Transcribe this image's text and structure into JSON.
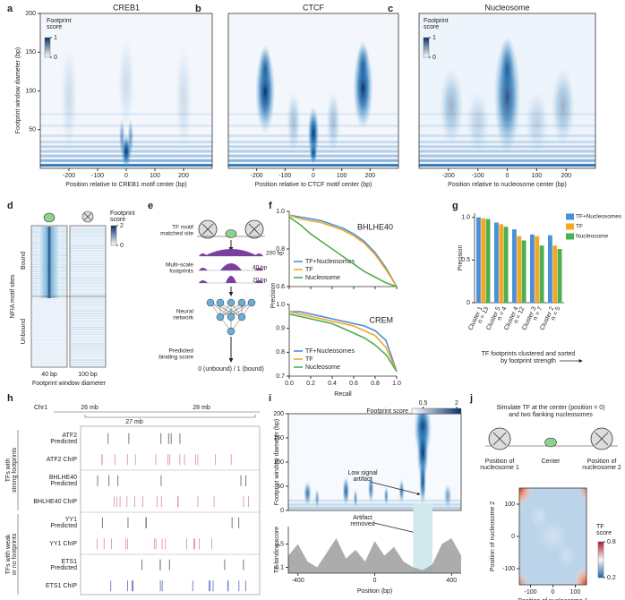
{
  "panel_labels": [
    "a",
    "b",
    "c",
    "d",
    "e",
    "f",
    "g",
    "h",
    "i",
    "j"
  ],
  "chart_data": [
    {
      "type": "heatmap",
      "title": "CREB1",
      "xlabel": "Position relative to CREB1 motif center (bp)",
      "ylabel": "Footprint window diameter (bp)",
      "xlim": [
        -300,
        300
      ],
      "xticks": [
        -200,
        -100,
        0,
        100,
        200
      ],
      "ylim": [
        0,
        200
      ],
      "yticks": [
        50,
        100,
        150,
        200
      ],
      "colorbar_label": [
        "Footprint",
        "score"
      ],
      "clim": [
        0,
        1
      ],
      "cticks": [
        0,
        1
      ]
    },
    {
      "type": "heatmap",
      "title": "CTCF",
      "xlabel": "Position relative to CTCF motif center (bp)",
      "xlim": [
        -300,
        300
      ],
      "xticks": [
        -200,
        -100,
        0,
        100,
        200
      ],
      "ylim": [
        0,
        200
      ]
    },
    {
      "type": "heatmap",
      "title": "Nucleosome",
      "xlabel": "Position relative to nucleosome center (bp)",
      "xlim": [
        -300,
        300
      ],
      "xticks": [
        -200,
        -100,
        0,
        100,
        200
      ],
      "ylim": [
        0,
        200
      ],
      "colorbar_label": [
        "Footprint",
        "score"
      ],
      "clim": [
        0,
        1
      ],
      "cticks": [
        0,
        1
      ]
    },
    {
      "type": "line",
      "title": "BHLHE40",
      "ylabel": "Precision",
      "x": [
        0,
        0.1,
        0.2,
        0.3,
        0.4,
        0.5,
        0.6,
        0.7,
        0.8,
        0.9,
        1
      ],
      "xlim": [
        0,
        1
      ],
      "ylim": [
        0.6,
        1.0
      ],
      "yticks": [
        0.6,
        0.8,
        {
          "value": 1,
          "label": "1.0"
        }
      ],
      "legend": "lower left",
      "series": [
        {
          "name": "TF+Nucleosomes",
          "color": "#4a90d9",
          "values": [
            0.98,
            0.97,
            0.96,
            0.95,
            0.93,
            0.91,
            0.88,
            0.84,
            0.78,
            0.7,
            0.6
          ]
        },
        {
          "name": "TF",
          "color": "#f5a623",
          "values": [
            0.98,
            0.96,
            0.95,
            0.94,
            0.92,
            0.9,
            0.87,
            0.83,
            0.77,
            0.69,
            0.6
          ]
        },
        {
          "name": "Nucleosome",
          "color": "#4caf50",
          "values": [
            0.97,
            0.93,
            0.88,
            0.84,
            0.8,
            0.76,
            0.72,
            0.68,
            0.65,
            0.62,
            0.6
          ]
        }
      ]
    },
    {
      "type": "line",
      "title": "CREM",
      "xlabel": "Recall",
      "x": [
        0,
        0.1,
        0.2,
        0.3,
        0.4,
        0.5,
        0.6,
        0.7,
        0.8,
        0.9,
        1
      ],
      "xlim": [
        0,
        1
      ],
      "xticks": [
        {
          "value": 0,
          "label": "0.0"
        },
        0.2,
        0.4,
        0.6,
        0.8,
        {
          "value": 1,
          "label": "1.0"
        }
      ],
      "ylim": [
        0.7,
        1.0
      ],
      "yticks": [
        0.7,
        0.8,
        0.9,
        {
          "value": 1,
          "label": "1.0"
        }
      ],
      "legend": "lower left",
      "series": [
        {
          "name": "TF+Nucleosomes",
          "color": "#4a90d9",
          "values": [
            0.97,
            0.97,
            0.96,
            0.95,
            0.94,
            0.93,
            0.92,
            0.91,
            0.89,
            0.85,
            0.72
          ]
        },
        {
          "name": "TF",
          "color": "#f5a623",
          "values": [
            0.97,
            0.96,
            0.95,
            0.94,
            0.93,
            0.92,
            0.91,
            0.89,
            0.87,
            0.82,
            0.72
          ]
        },
        {
          "name": "Nucleosome",
          "color": "#4caf50",
          "values": [
            0.96,
            0.95,
            0.94,
            0.93,
            0.92,
            0.9,
            0.88,
            0.86,
            0.83,
            0.79,
            0.72
          ]
        }
      ]
    },
    {
      "type": "bar",
      "ylabel": "Precision",
      "xlabel": [
        "TF footprints clustered and sorted",
        "by footprint strength"
      ],
      "categories": [
        "Cluster 1",
        "Cluster 5",
        "Cluster 4",
        "Cluster 3",
        "Cluster 2"
      ],
      "category_counts": [
        "n = 13",
        "n = 4",
        "n = 12",
        "n = 7",
        "n = 5"
      ],
      "ylim": [
        0,
        1.05
      ],
      "yticks": [
        0,
        0.5,
        {
          "value": 1,
          "label": "1.0"
        }
      ],
      "legend": "upper right",
      "series": [
        {
          "name": "TF+Nucleosomes",
          "color": "#4a90d9",
          "values": [
            1,
            0.94,
            0.86,
            0.8,
            0.79
          ]
        },
        {
          "name": "TF",
          "color": "#f5a623",
          "values": [
            0.99,
            0.92,
            0.78,
            0.78,
            0.67
          ]
        },
        {
          "name": "Nucleosome",
          "color": "#4caf50",
          "values": [
            0.98,
            0.89,
            0.73,
            0.67,
            0.63
          ]
        }
      ]
    },
    {
      "type": "heatmap",
      "ylabel": "Footprint window diameter (bp)",
      "xlim": [
        -450,
        450
      ],
      "ylim": [
        0,
        200
      ],
      "yticks": [
        0,
        50,
        100,
        150,
        200
      ],
      "colorbar_label": [
        "Footprint score"
      ],
      "clim": [
        0,
        2.2
      ],
      "cticks": [
        0.5,
        2
      ],
      "annotations": [
        [
          "Low signal",
          "artifact"
        ],
        [
          "Artifact",
          "removed"
        ]
      ]
    },
    {
      "type": "area",
      "ylabel": "TF binding score",
      "xlabel": "Position (bp)",
      "x": [
        -450,
        -400,
        -350,
        -300,
        -250,
        -200,
        -150,
        -100,
        -50,
        0,
        50,
        100,
        150,
        200,
        250,
        300,
        350,
        400,
        450
      ],
      "values": [
        0.3,
        0.5,
        0.2,
        0.1,
        0.35,
        0.6,
        0.25,
        0.4,
        0.2,
        0.55,
        0.3,
        0.45,
        0.2,
        0.1,
        0.05,
        0.15,
        0.5,
        0.6,
        0.3
      ],
      "color": "#9e9e9e",
      "xlim": [
        -450,
        450
      ],
      "xticks": [
        -400,
        0,
        400
      ],
      "ylim": [
        0,
        0.8
      ],
      "yticks": [
        0.1,
        0.5
      ]
    },
    {
      "type": "heatmap",
      "xlabel": "Position of nucleosome 1",
      "ylabel": "Position of nucleosome 2",
      "xlim": [
        -150,
        150
      ],
      "xticks": [
        -100,
        0,
        100
      ],
      "ylim": [
        -150,
        150
      ],
      "yticks": [
        -100,
        0,
        100
      ],
      "colorbar_label": [
        "TF",
        "score"
      ],
      "clim": [
        0.2,
        0.8
      ],
      "cticks": [
        0.2,
        0.8
      ]
    }
  ],
  "panel_d": {
    "column_labels": [
      "40 bp",
      "100 bp"
    ],
    "xlabel": "Footprint window diameter",
    "ylabel": "NFIA motif sites",
    "row_labels": [
      "Bound",
      "Unbound"
    ],
    "colorbar_label": [
      "Footprint",
      "score"
    ],
    "clim": [
      0,
      2
    ],
    "cticks": [
      0,
      2
    ]
  },
  "panel_e": {
    "left_labels": [
      [
        "TF motif",
        "matched site"
      ],
      [
        "Multi-scale",
        "footprints"
      ],
      [
        "Neural",
        "network"
      ],
      [
        "Predicted",
        "binding score"
      ]
    ],
    "scales": [
      "200 bp",
      "40 bp",
      "20 bp"
    ],
    "output": "0 (unbound) / 1 (bound)"
  },
  "panel_h": {
    "chromosome": "Chr1",
    "positions": [
      "26 mb",
      "27 mb",
      "28 mb"
    ],
    "groups": [
      {
        "label": [
          "TFs with",
          "strong footprints"
        ],
        "tracks": [
          [
            "ATF2",
            "Predicted"
          ],
          [
            "ATF2 ChIP"
          ],
          [
            "BHLHE40",
            "Predicted"
          ],
          [
            "BHLHE40 ChIP"
          ]
        ]
      },
      {
        "label": [
          "TFs with weak",
          "or no footprints"
        ],
        "tracks": [
          [
            "YY1",
            "Predicted"
          ],
          [
            "YY1 ChIP"
          ],
          [
            "ETS1",
            "Predicted"
          ],
          [
            "ETS1 ChIP"
          ]
        ]
      }
    ]
  },
  "panel_j": {
    "caption": [
      "Simulate TF at the center (position = 0)",
      "and two flanking nucleosomes"
    ],
    "labels": [
      [
        "Position of",
        "nucleosome 1"
      ],
      [
        "Center"
      ],
      [
        "Position of",
        "nucleosome 2"
      ]
    ]
  }
}
